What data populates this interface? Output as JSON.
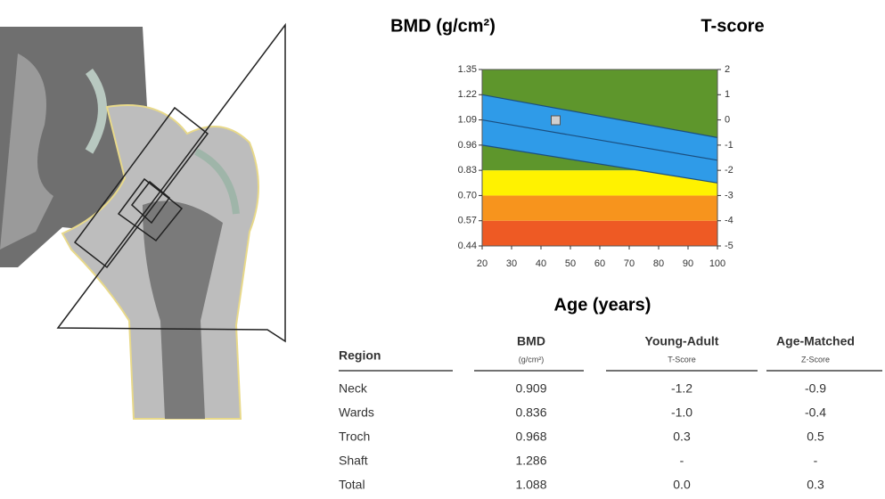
{
  "chart_data": {
    "type": "line",
    "ylabel": "BMD (g/cm²)",
    "y2label": "T-score",
    "xlabel": "Age (years)",
    "xlim": [
      20,
      100
    ],
    "xticks": [
      20,
      30,
      40,
      50,
      60,
      70,
      80,
      90,
      100
    ],
    "ylim": [
      0.44,
      1.35
    ],
    "yticks": [
      0.44,
      0.57,
      {
        "value": 0.7,
        "label": "0.70"
      },
      0.83,
      0.96,
      1.09,
      1.22,
      1.35
    ],
    "y2lim": [
      -5,
      2
    ],
    "y2ticks": [
      -5,
      -4,
      -3,
      -2,
      -1,
      0,
      1,
      2
    ],
    "bands": [
      {
        "from": -5,
        "to": -4,
        "color": "#ee5a24"
      },
      {
        "from": -4,
        "to": -3,
        "color": "#f7941d"
      },
      {
        "from": -3,
        "to": -2,
        "color": "#fff200"
      },
      {
        "from": -2,
        "to": 2,
        "color": "#5e962c"
      }
    ],
    "band_between": {
      "series": [
        0,
        2
      ],
      "color": "#2f9be8"
    },
    "series": [
      {
        "axis": "y2",
        "color": "#1b4f80",
        "x": [
          20,
          100
        ],
        "values": [
          1,
          -0.7
        ]
      },
      {
        "axis": "y2",
        "color": "#1b4f80",
        "x": [
          20,
          100
        ],
        "values": [
          0,
          -1.6
        ]
      },
      {
        "axis": "y2",
        "color": "#1b4f80",
        "x": [
          20,
          100
        ],
        "values": [
          -1,
          -2.5
        ]
      },
      {
        "color": "#cfcfcf",
        "marker": "square",
        "x": [
          45
        ],
        "values": [
          1.088
        ]
      }
    ]
  },
  "table": {
    "header": [
      [
        "Region"
      ],
      [
        "BMD",
        "(g/cm²)"
      ],
      [
        "Young-Adult",
        "T-Score"
      ],
      [
        "Age-Matched",
        "Z-Score"
      ]
    ],
    "rows": [
      [
        "Neck",
        "0.909",
        "-1.2",
        "-0.9"
      ],
      [
        "Wards",
        "0.836",
        "-1.0",
        "-0.4"
      ],
      [
        "Troch",
        "0.968",
        "0.3",
        "0.5"
      ],
      [
        "Shaft",
        "1.286",
        "-",
        "-"
      ],
      [
        "Total",
        "1.088",
        "0.0",
        "0.3"
      ]
    ]
  }
}
